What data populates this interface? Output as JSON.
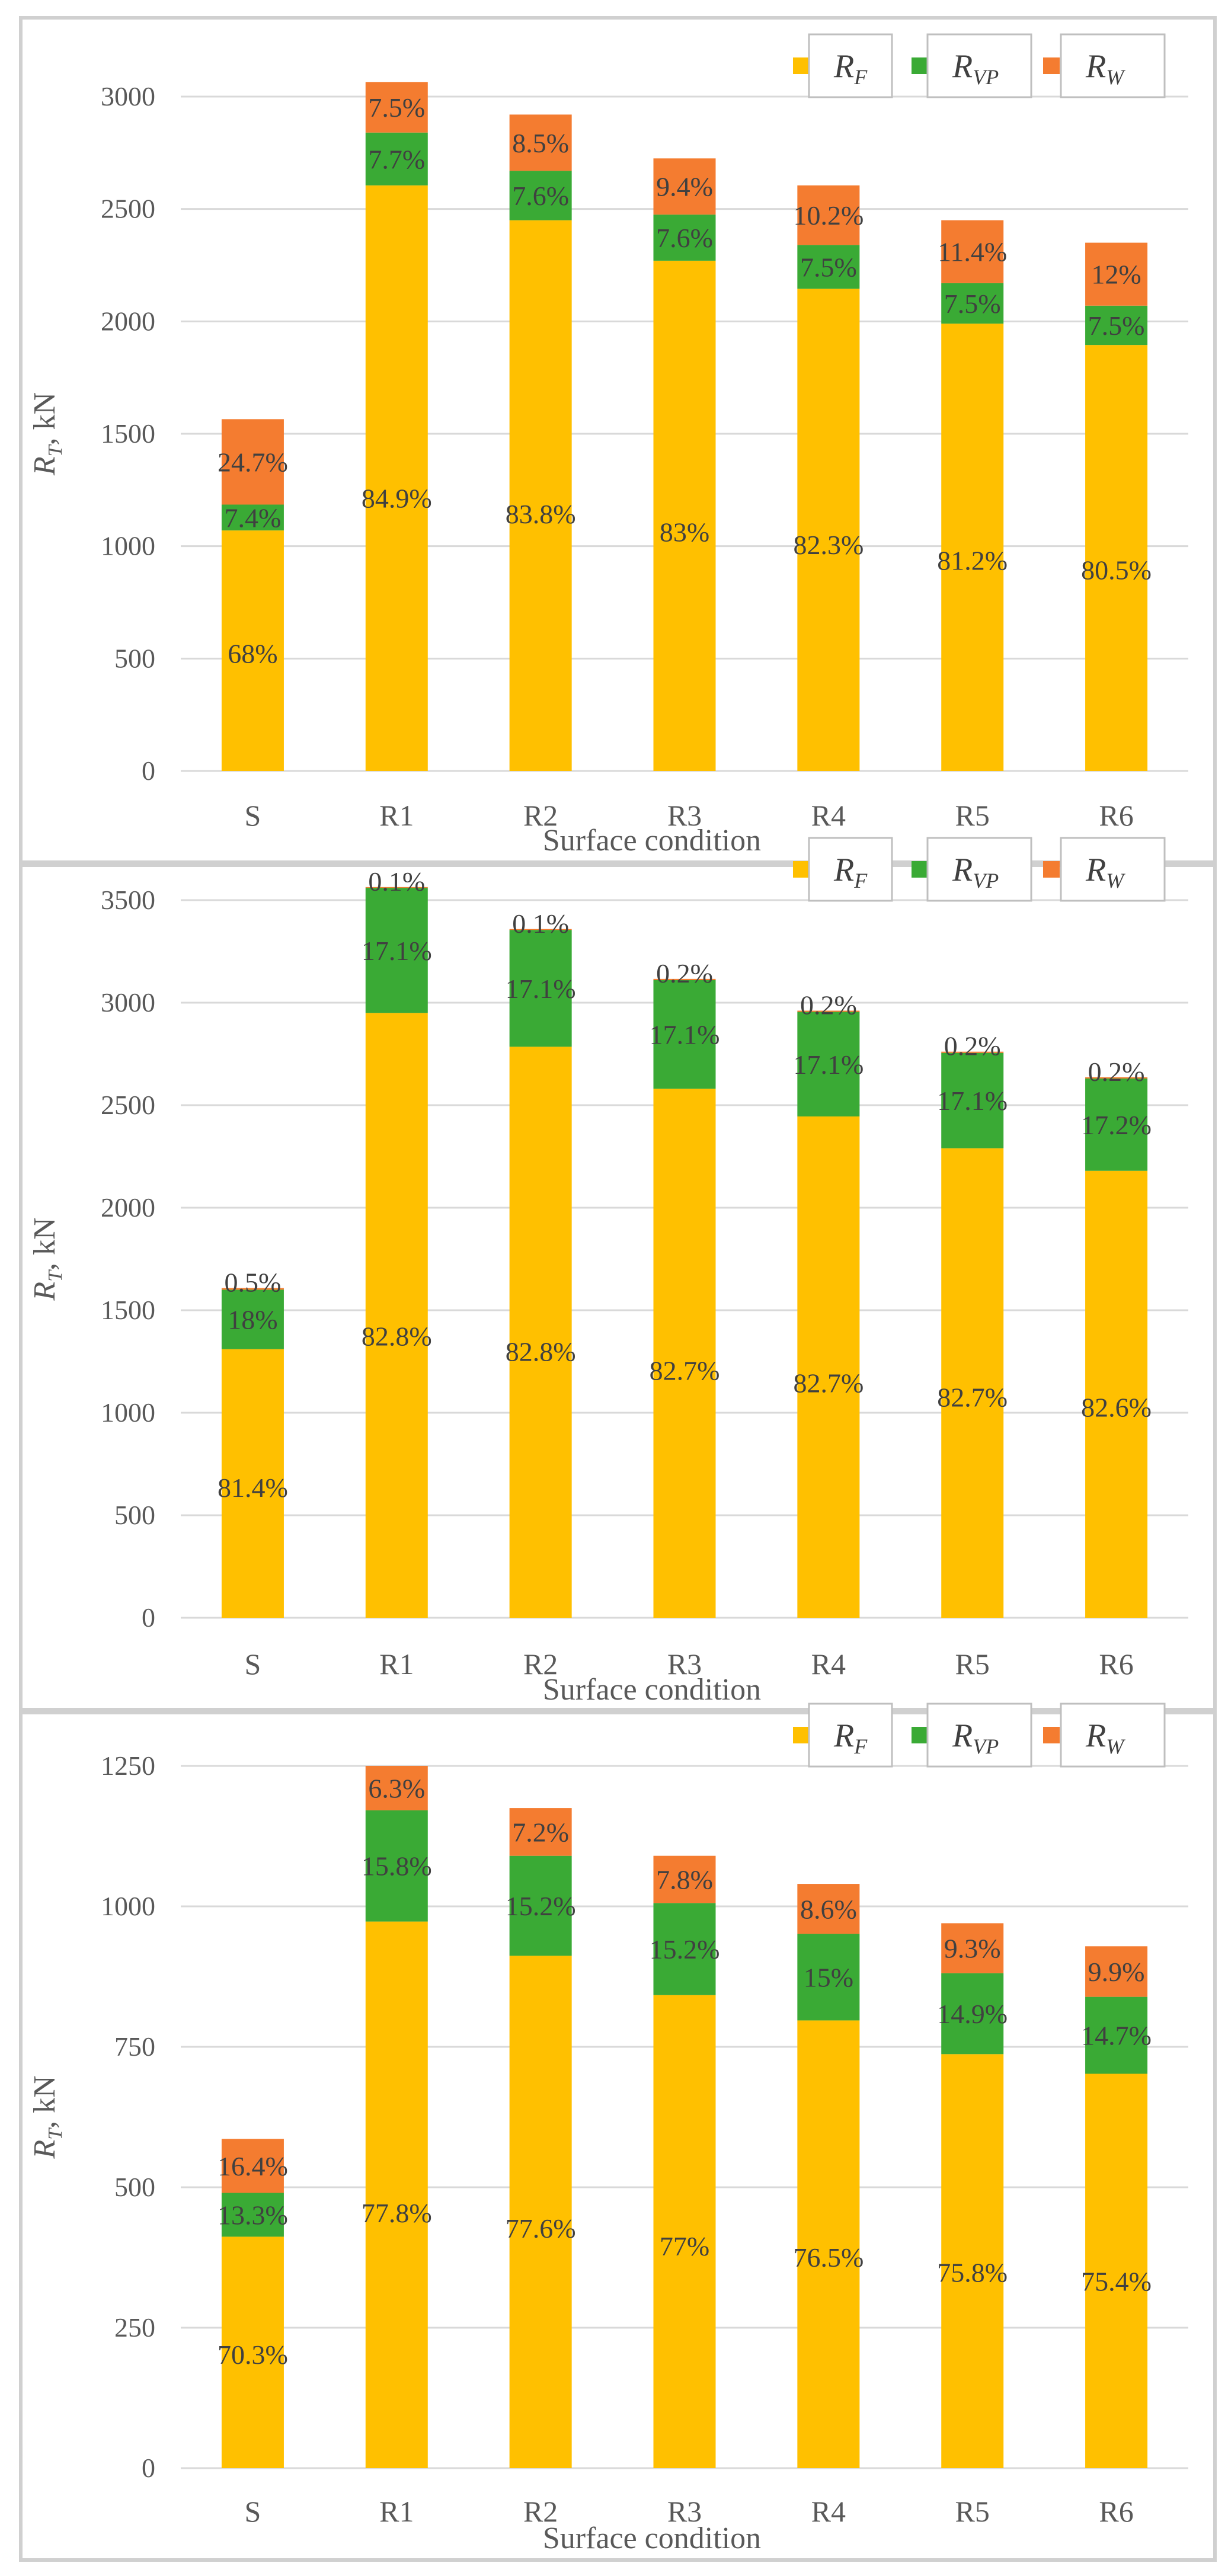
{
  "colors": {
    "RF": "#ffc000",
    "RVP": "#3aaa35",
    "RW": "#f47c30",
    "grid": "#d9d9d9",
    "text": "#595959"
  },
  "legend": [
    {
      "key": "RF",
      "main": "R",
      "sub": "F"
    },
    {
      "key": "RVP",
      "main": "R",
      "sub": "VP"
    },
    {
      "key": "RW",
      "main": "R",
      "sub": "W"
    }
  ],
  "chart_data": [
    {
      "type": "bar",
      "stacked": true,
      "title": "",
      "xlabel": "Surface condition",
      "ylabel": {
        "main": "R",
        "sub": "T",
        "rest": ", kN"
      },
      "ylim": [
        0,
        3000
      ],
      "yticks": [
        0,
        500,
        1000,
        1500,
        2000,
        2500,
        3000
      ],
      "ytick_labels": [
        "0",
        "500",
        "1000",
        "1500",
        "2000",
        "2500",
        "3000"
      ],
      "categories": [
        "S",
        "R1",
        "R2",
        "R3",
        "R4",
        "R5",
        "R6"
      ],
      "series": [
        {
          "name": "RF",
          "values": [
            1070,
            2605,
            2450,
            2270,
            2145,
            1990,
            1895
          ],
          "labels": [
            "68%",
            "84.9%",
            "83.8%",
            "83%",
            "82.3%",
            "81.2%",
            "80.5%"
          ]
        },
        {
          "name": "RVP",
          "values": [
            115,
            235,
            220,
            205,
            195,
            180,
            175
          ],
          "labels": [
            "7.4%",
            "7.7%",
            "7.6%",
            "7.6%",
            "7.5%",
            "7.5%",
            "7.5%"
          ]
        },
        {
          "name": "RW",
          "values": [
            380,
            225,
            250,
            250,
            265,
            280,
            280
          ],
          "labels": [
            "24.7%",
            "7.5%",
            "8.5%",
            "9.4%",
            "10.2%",
            "11.4%",
            "12%"
          ]
        }
      ],
      "grid": true,
      "legend_position": "top-right"
    },
    {
      "type": "bar",
      "stacked": true,
      "title": "",
      "xlabel": "Surface condition",
      "ylabel": {
        "main": "R",
        "sub": "T",
        "rest": ", kN"
      },
      "ylim": [
        0,
        3500
      ],
      "yticks": [
        0,
        500,
        1000,
        1500,
        2000,
        2500,
        3000,
        3500
      ],
      "ytick_labels": [
        "0",
        "500",
        "1000",
        "1500",
        "2000",
        "2500",
        "3000",
        "3500"
      ],
      "categories": [
        "S",
        "R1",
        "R2",
        "R3",
        "R4",
        "R5",
        "R6"
      ],
      "series": [
        {
          "name": "RF",
          "values": [
            1310,
            2950,
            2785,
            2580,
            2445,
            2290,
            2180
          ],
          "labels": [
            "81.4%",
            "82.8%",
            "82.8%",
            "82.7%",
            "82.7%",
            "82.7%",
            "82.6%"
          ]
        },
        {
          "name": "RVP",
          "values": [
            290,
            610,
            570,
            530,
            510,
            465,
            450
          ],
          "labels": [
            "18%",
            "17.1%",
            "17.1%",
            "17.1%",
            "17.1%",
            "17.1%",
            "17.2%"
          ]
        },
        {
          "name": "RW",
          "values": [
            8,
            4,
            4,
            6,
            6,
            6,
            6
          ],
          "labels": [
            "0.5%",
            "0.1%",
            "0.1%",
            "0.2%",
            "0.2%",
            "0.2%",
            "0.2%"
          ]
        }
      ],
      "grid": true,
      "legend_position": "top-right"
    },
    {
      "type": "bar",
      "stacked": true,
      "title": "",
      "xlabel": "Surface condition",
      "ylabel": {
        "main": "R",
        "sub": "T",
        "rest": ", kN"
      },
      "ylim": [
        0,
        1250
      ],
      "yticks": [
        0,
        250,
        500,
        750,
        1000,
        1250
      ],
      "ytick_labels": [
        "0",
        "250",
        "500",
        "750",
        "1000",
        "1250"
      ],
      "categories": [
        "S",
        "R1",
        "R2",
        "R3",
        "R4",
        "R5",
        "R6"
      ],
      "series": [
        {
          "name": "RF",
          "values": [
            412,
            973,
            912,
            842,
            797,
            737,
            702
          ],
          "labels": [
            "70.3%",
            "77.8%",
            "77.6%",
            "77%",
            "76.5%",
            "75.8%",
            "75.4%"
          ]
        },
        {
          "name": "RVP",
          "values": [
            78,
            198,
            178,
            164,
            154,
            144,
            137
          ],
          "labels": [
            "13.3%",
            "15.8%",
            "15.2%",
            "15.2%",
            "15%",
            "14.9%",
            "14.7%"
          ]
        },
        {
          "name": "RW",
          "values": [
            96,
            79,
            85,
            84,
            89,
            89,
            90
          ],
          "labels": [
            "16.4%",
            "6.3%",
            "7.2%",
            "7.8%",
            "8.6%",
            "9.3%",
            "9.9%"
          ]
        }
      ],
      "grid": true,
      "legend_position": "top-right"
    }
  ]
}
